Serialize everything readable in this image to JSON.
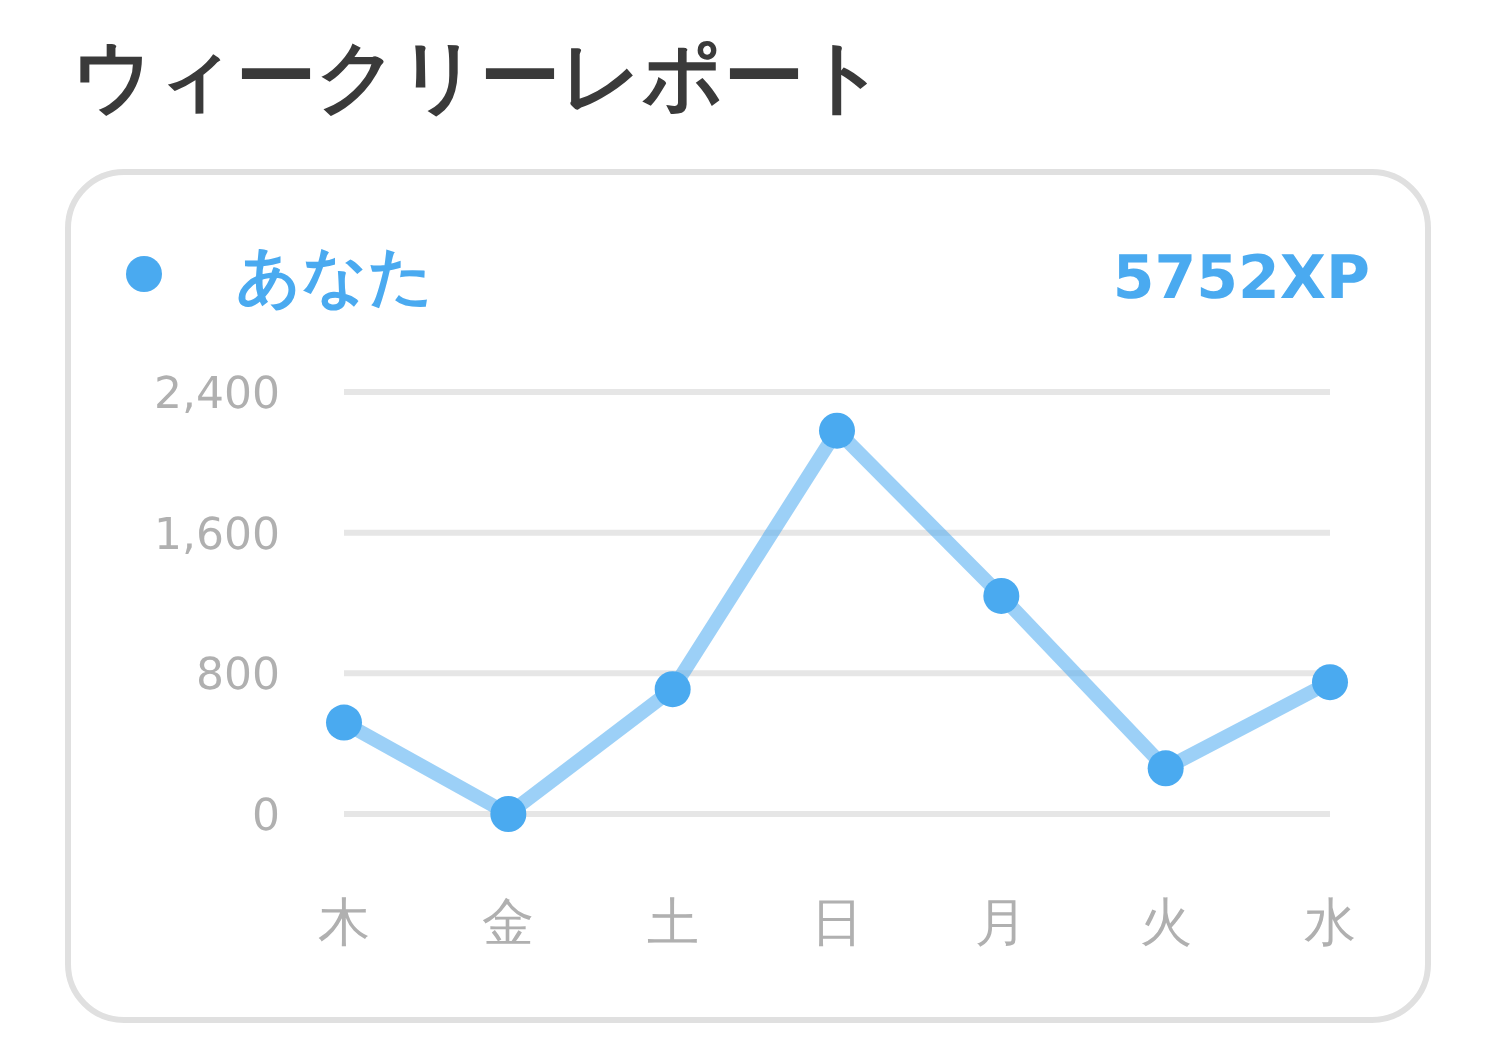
{
  "chart_data": {
    "type": "line",
    "title": "ウィークリーレポート",
    "annotations": [
      "5752XP"
    ],
    "categories": [
      "木",
      "金",
      "土",
      "日",
      "月",
      "火",
      "水"
    ],
    "series": [
      {
        "name": "あなた",
        "color": "#4aaaf0",
        "values": [
          520,
          0,
          710,
          2180,
          1240,
          260,
          750
        ]
      }
    ],
    "ylim": [
      0,
      2400
    ],
    "yticks": [
      0,
      800,
      {
        "value": 1600,
        "label": "1,600"
      },
      {
        "value": 2400,
        "label": "2,400"
      }
    ],
    "grid": "y",
    "legend": "top left",
    "marker": "circle",
    "line_style": "solid"
  }
}
